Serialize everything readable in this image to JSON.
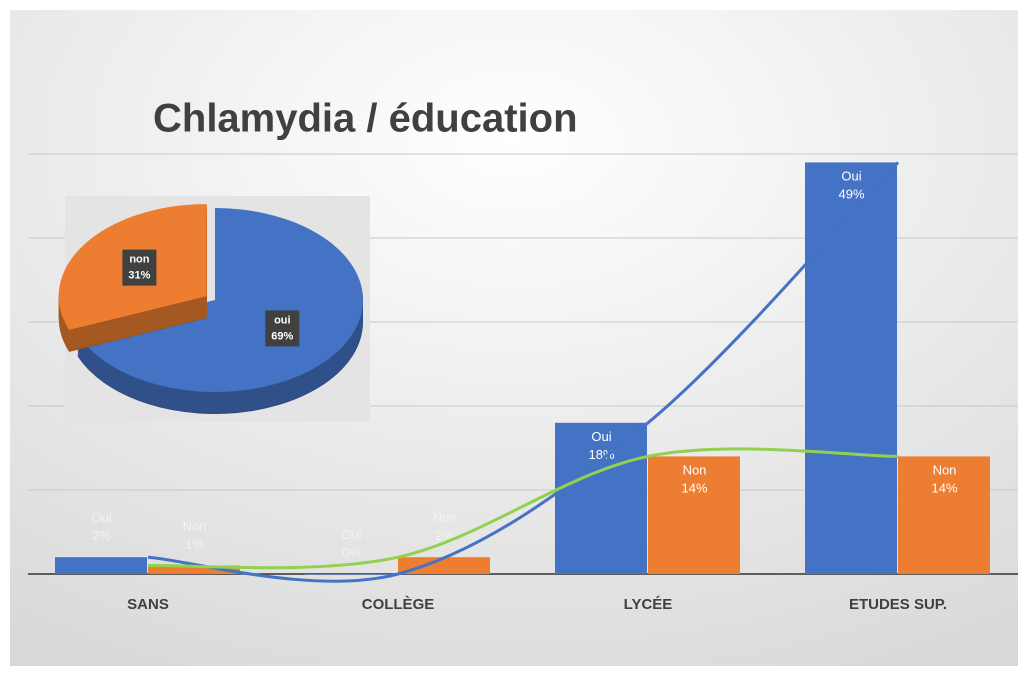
{
  "chart_data": [
    {
      "type": "bar",
      "title": "Chlamydia / éducation",
      "categories": [
        "SANS",
        "COLLÈGE",
        "LYCÉE",
        "ETUDES SUP."
      ],
      "series": [
        {
          "name": "Oui",
          "color": "#4472c4",
          "trend_color": "#4472c4",
          "values": [
            2,
            0,
            18,
            49
          ],
          "value_labels": [
            "2%",
            "0%",
            "18%",
            "49%"
          ]
        },
        {
          "name": "Non",
          "color": "#ed7d31",
          "trend_color": "#92d050",
          "values": [
            1,
            2,
            14,
            14
          ],
          "value_labels": [
            "1%",
            "2%",
            "14%",
            "14%"
          ]
        }
      ],
      "ylim": [
        0,
        50
      ],
      "yticks": [
        0,
        10,
        20,
        30,
        40,
        50
      ],
      "grid": true,
      "trendline": true
    },
    {
      "type": "pie",
      "categories": [
        "oui",
        "non"
      ],
      "values": [
        69,
        31
      ],
      "value_labels": [
        "69%",
        "31%"
      ],
      "colors": [
        "#4472c4",
        "#ed7d31"
      ]
    }
  ]
}
